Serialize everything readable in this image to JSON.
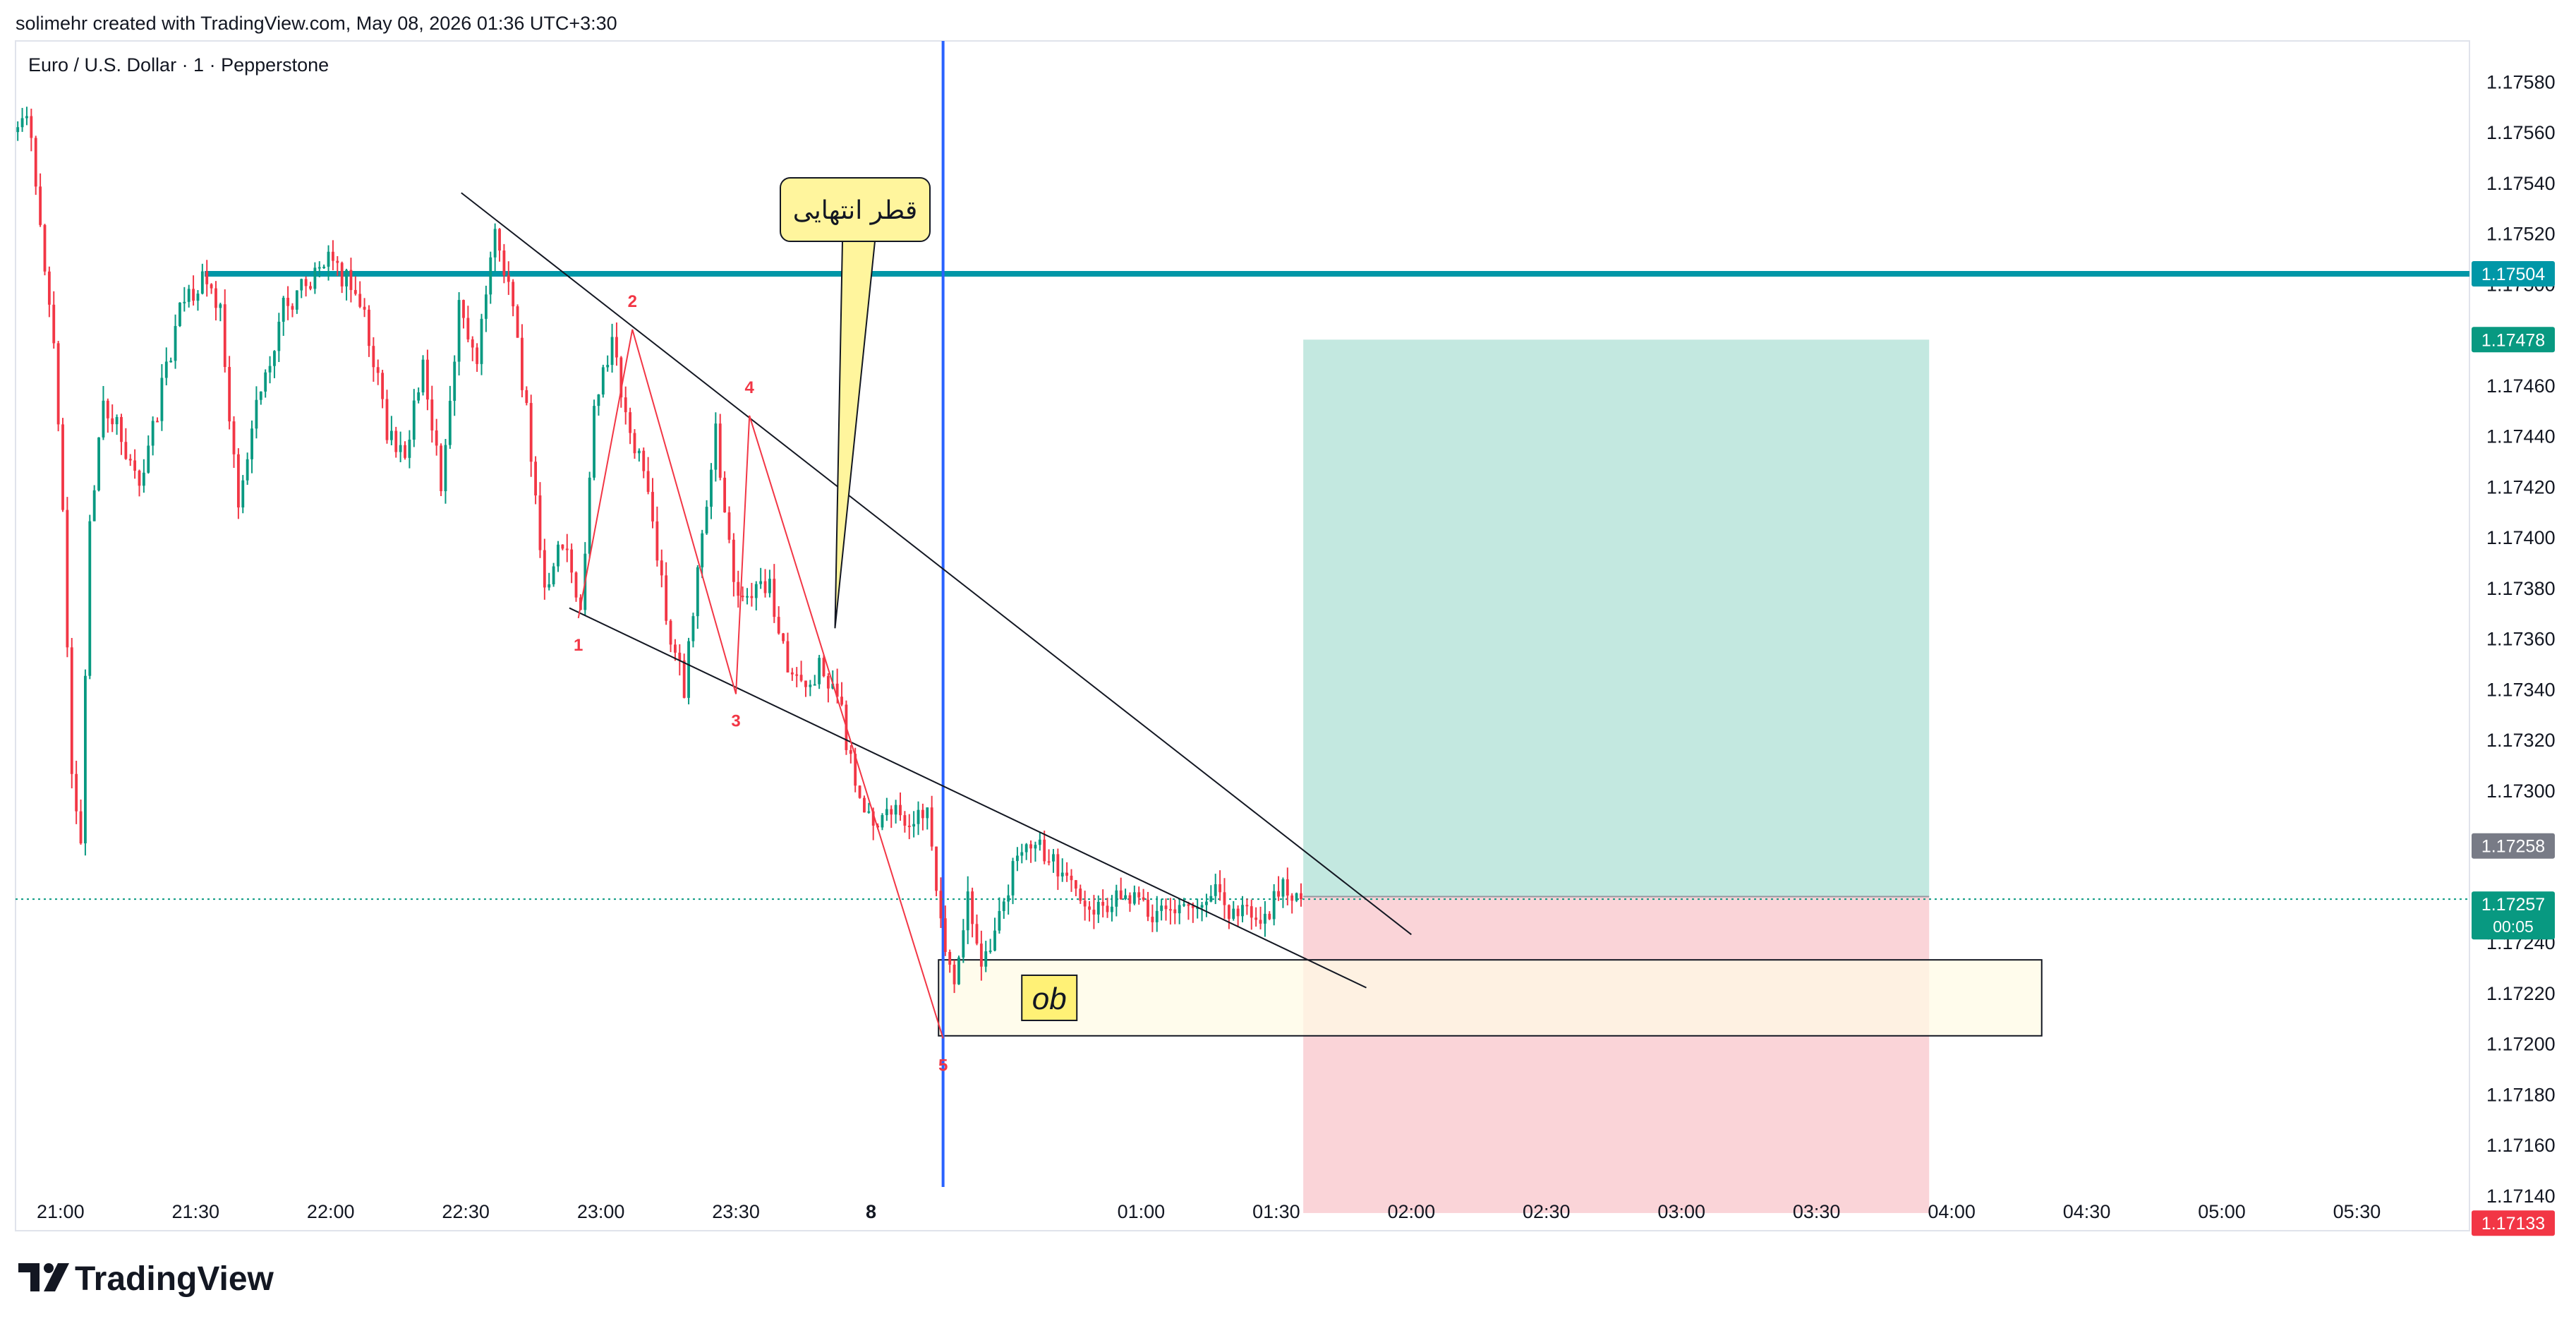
{
  "header": {
    "attribution": "solimehr created with TradingView.com, May 08, 2026 01:36 UTC+3:30",
    "symbol_line": "Euro / U.S. Dollar · 1 · Pepperstone"
  },
  "footer": {
    "logo_text": "TradingView",
    "logo_icon": "tradingview-logo-icon"
  },
  "colors": {
    "bull": "#089981",
    "bear": "#f23645",
    "horizontal_line": "#0097a7",
    "vertical_line": "#2962ff",
    "target_zone": "#c3e8e0",
    "stop_zone": "#fad4d8",
    "ob_zone": "#fffbe6",
    "callout": "#fff59d",
    "wave_line": "#f23645",
    "channel_line": "#131722",
    "current_price_badge": "#089981",
    "prev_price_badge": "#787b86",
    "stop_badge": "#f23645",
    "horizontal_badge": "#0097a7"
  },
  "annotations": {
    "callout_text": "قطر انتهایی",
    "ob_label": "ob",
    "wave_labels": [
      "1",
      "2",
      "3",
      "4",
      "5"
    ]
  },
  "price_badges": {
    "horizontal_level": "1.17504",
    "target": "1.17478",
    "previous_close": "1.17258",
    "current": "1.17257",
    "countdown": "00:05",
    "stop": "1.17133"
  },
  "chart_data": {
    "type": "candlestick",
    "symbol": "EURUSD",
    "timeframe": "1",
    "x_axis": {
      "range": [
        "20:50",
        "05:55"
      ],
      "ticks": [
        "21:00",
        "21:30",
        "22:00",
        "22:30",
        "23:00",
        "23:30",
        "8",
        "01:00",
        "01:30",
        "02:00",
        "02:30",
        "03:00",
        "03:30",
        "04:00",
        "04:30",
        "05:00",
        "05:30"
      ]
    },
    "y_axis": {
      "range": [
        1.17126,
        1.17596
      ],
      "ticks": [
        "1.17580",
        "1.17560",
        "1.17540",
        "1.17520",
        "1.17500",
        "1.17460",
        "1.17440",
        "1.17420",
        "1.17400",
        "1.17380",
        "1.17360",
        "1.17340",
        "1.17320",
        "1.17300",
        "1.17280",
        "1.17240",
        "1.17220",
        "1.17200",
        "1.17180",
        "1.17160",
        "1.17140"
      ]
    },
    "price_path": [
      [
        "20:50",
        1.1756
      ],
      [
        "20:53",
        1.1757
      ],
      [
        "20:56",
        1.1752
      ],
      [
        "20:59",
        1.1748
      ],
      [
        "21:01",
        1.1741
      ],
      [
        "21:03",
        1.1731
      ],
      [
        "21:05",
        1.1728
      ],
      [
        "21:07",
        1.1741
      ],
      [
        "21:10",
        1.1745
      ],
      [
        "21:14",
        1.1744
      ],
      [
        "21:18",
        1.1742
      ],
      [
        "21:22",
        1.1745
      ],
      [
        "21:27",
        1.1749
      ],
      [
        "21:32",
        1.175
      ],
      [
        "21:36",
        1.1749
      ],
      [
        "21:40",
        1.1741
      ],
      [
        "21:44",
        1.1745
      ],
      [
        "21:50",
        1.1749
      ],
      [
        "21:55",
        1.175
      ],
      [
        "22:00",
        1.1751
      ],
      [
        "22:05",
        1.175
      ],
      [
        "22:09",
        1.1748
      ],
      [
        "22:13",
        1.1744
      ],
      [
        "22:17",
        1.1743
      ],
      [
        "22:21",
        1.1747
      ],
      [
        "22:25",
        1.1742
      ],
      [
        "22:29",
        1.1749
      ],
      [
        "22:33",
        1.1747
      ],
      [
        "22:37",
        1.1752
      ],
      [
        "22:40",
        1.175
      ],
      [
        "22:44",
        1.1745
      ],
      [
        "22:48",
        1.1738
      ],
      [
        "22:52",
        1.174
      ],
      [
        "22:56",
        1.1737
      ],
      [
        "22:59",
        1.1745
      ],
      [
        "23:03",
        1.1748
      ],
      [
        "23:07",
        1.1744
      ],
      [
        "23:11",
        1.1742
      ],
      [
        "23:15",
        1.1737
      ],
      [
        "23:19",
        1.1734
      ],
      [
        "23:23",
        1.174
      ],
      [
        "23:26",
        1.1744
      ],
      [
        "23:30",
        1.1738
      ],
      [
        "23:34",
        1.1738
      ],
      [
        "23:38",
        1.1738
      ],
      [
        "23:42",
        1.1735
      ],
      [
        "23:46",
        1.1734
      ],
      [
        "23:50",
        1.1735
      ],
      [
        "23:54",
        1.1733
      ],
      [
        "23:57",
        1.173
      ],
      [
        "00:01",
        1.1729
      ],
      [
        "00:05",
        1.1729
      ],
      [
        "00:09",
        1.1729
      ],
      [
        "00:13",
        1.1729
      ],
      [
        "00:16",
        1.1725
      ],
      [
        "00:19",
        1.1722
      ],
      [
        "00:22",
        1.1726
      ],
      [
        "00:25",
        1.1723
      ],
      [
        "00:28",
        1.1724
      ],
      [
        "00:32",
        1.1727
      ],
      [
        "00:37",
        1.1728
      ],
      [
        "00:42",
        1.1727
      ],
      [
        "00:47",
        1.1726
      ],
      [
        "00:52",
        1.1725
      ],
      [
        "00:57",
        1.1726
      ],
      [
        "01:02",
        1.1725
      ],
      [
        "01:07",
        1.1725
      ],
      [
        "01:12",
        1.1725
      ],
      [
        "01:17",
        1.1726
      ],
      [
        "01:22",
        1.1725
      ],
      [
        "01:27",
        1.1725
      ],
      [
        "01:32",
        1.1726
      ],
      [
        "01:35",
        1.17257
      ]
    ],
    "horizontal_level": {
      "price": 1.17504,
      "from": "21:32"
    },
    "vertical_line": {
      "time": "00:16"
    },
    "wave_points": [
      {
        "label": "1",
        "time": "22:55",
        "price": 1.17368
      },
      {
        "label": "2",
        "time": "23:07",
        "price": 1.17482
      },
      {
        "label": "3",
        "time": "23:30",
        "price": 1.17338
      },
      {
        "label": "4",
        "time": "23:33",
        "price": 1.17448
      },
      {
        "label": "5",
        "time": "00:16",
        "price": 1.17202
      }
    ],
    "channel_upper": [
      [
        "22:29",
        1.17536
      ],
      [
        "02:00",
        1.17243
      ]
    ],
    "channel_lower": [
      [
        "22:53",
        1.17372
      ],
      [
        "01:50",
        1.17222
      ]
    ],
    "callout_pointer": {
      "time": "23:52",
      "price": 1.17364
    },
    "ob_zone": {
      "from": "00:15",
      "to": "04:20",
      "top": 1.17233,
      "bottom": 1.17203
    },
    "position": {
      "type": "long",
      "from": "01:36",
      "to": "03:55",
      "entry": 1.17258,
      "target": 1.17478,
      "stop": 1.17133
    },
    "current_price": 1.17257
  }
}
